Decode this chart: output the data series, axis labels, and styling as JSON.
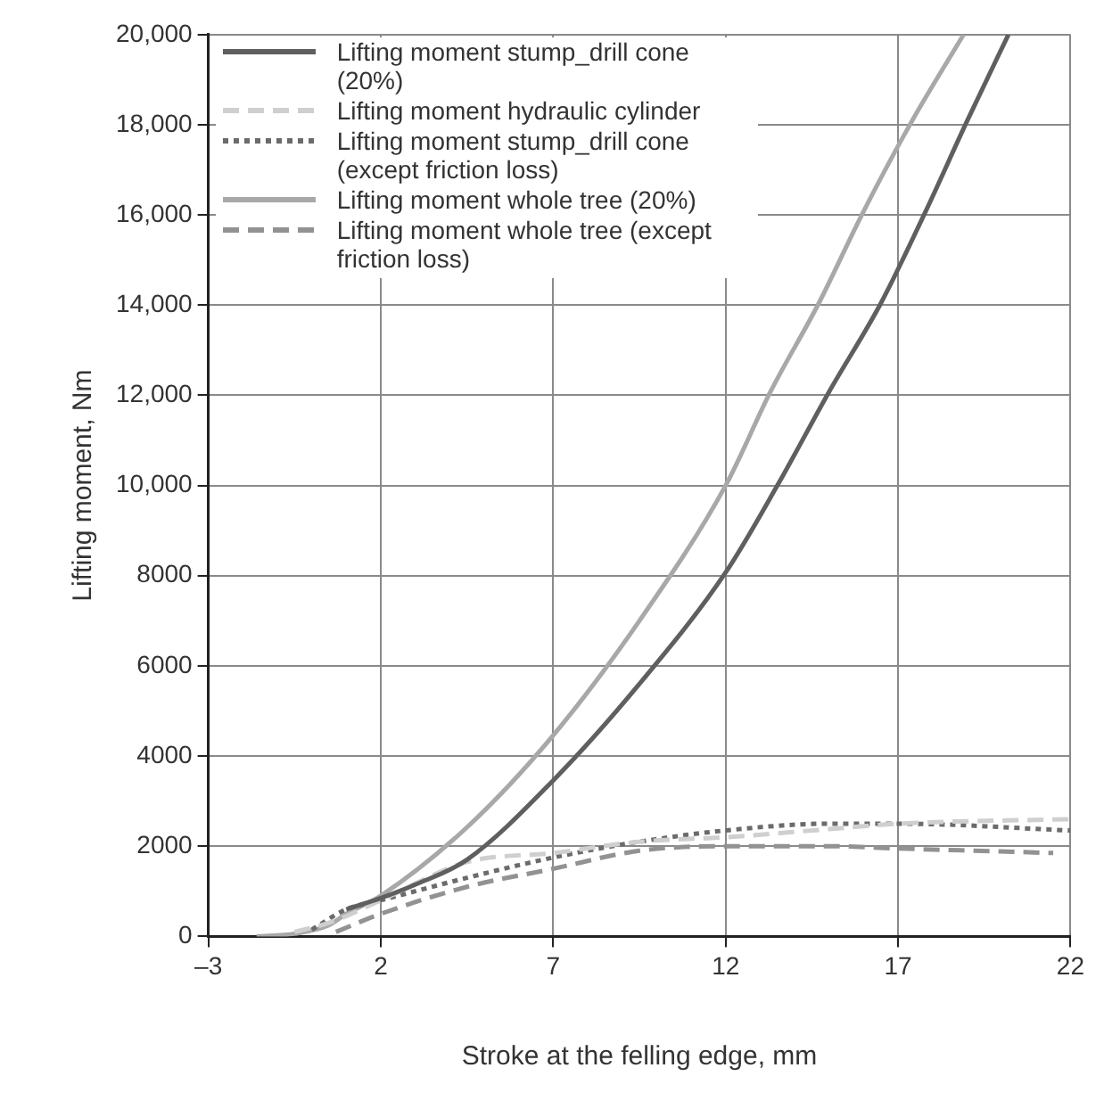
{
  "chart_data": {
    "type": "line",
    "xlabel": "Stroke at the felling edge, mm",
    "ylabel": "Lifting moment, Nm",
    "xlim": [
      -3,
      22
    ],
    "ylim": [
      0,
      20000
    ],
    "xticks": [
      {
        "value": -3,
        "label": "–3"
      },
      2,
      7,
      12,
      17,
      22
    ],
    "yticks": [
      0,
      2000,
      4000,
      6000,
      8000,
      {
        "value": 10000,
        "label": "10,000"
      },
      {
        "value": 12000,
        "label": "12,000"
      },
      {
        "value": 14000,
        "label": "14,000"
      },
      {
        "value": 16000,
        "label": "16,000"
      },
      {
        "value": 18000,
        "label": "18,000"
      },
      {
        "value": 20000,
        "label": "20,000"
      }
    ],
    "grid": true,
    "legend": "top left",
    "marker": "none",
    "series": [
      {
        "name": "Lifting moment stump_drill cone (20%)",
        "color": "#5f5f5f",
        "line_style": "solid",
        "x": [
          1.0,
          2,
          3,
          4.5,
          7,
          9.5,
          12,
          13.5,
          15,
          16.5,
          17.8,
          19.0,
          20.2
        ],
        "values": [
          600,
          850,
          1150,
          1700,
          3460,
          5600,
          8070,
          10000,
          12080,
          14040,
          16080,
          18080,
          20000
        ]
      },
      {
        "name": "Lifting moment hydraulic cylinder",
        "color": "#cfcfcf",
        "line_style": "dashed",
        "x": [
          -0.5,
          0.5,
          2,
          4.5,
          7,
          9.5,
          12,
          15,
          17,
          22
        ],
        "values": [
          100,
          300,
          800,
          1650,
          1850,
          2100,
          2200,
          2380,
          2500,
          2600
        ]
      },
      {
        "name": "Lifting moment stump_drill cone (except friction loss)",
        "color": "#6b6b6b",
        "line_style": "dotted",
        "x": [
          0,
          1,
          2,
          4.5,
          7,
          9.5,
          12,
          15,
          17,
          22
        ],
        "values": [
          150,
          600,
          800,
          1300,
          1750,
          2100,
          2350,
          2500,
          2500,
          2350
        ]
      },
      {
        "name": "Lifting moment whole tree (20%)",
        "color": "#a8a8a8",
        "line_style": "solid",
        "x": [
          -1.6,
          -0.5,
          0.5,
          1,
          2,
          4.5,
          7,
          9.5,
          12,
          13.3,
          14.7,
          16.0,
          17.4,
          18.9
        ],
        "values": [
          0,
          60,
          250,
          500,
          900,
          2420,
          4460,
          7000,
          10000,
          12080,
          14040,
          16080,
          18080,
          20000
        ]
      },
      {
        "name": "Lifting moment whole tree (except friction loss)",
        "color": "#929292",
        "line_style": "dashed",
        "x": [
          0.7,
          2,
          4.5,
          7,
          9.5,
          12,
          15,
          17,
          21.5
        ],
        "values": [
          100,
          500,
          1100,
          1500,
          1900,
          2000,
          2000,
          1950,
          1850
        ]
      }
    ]
  }
}
